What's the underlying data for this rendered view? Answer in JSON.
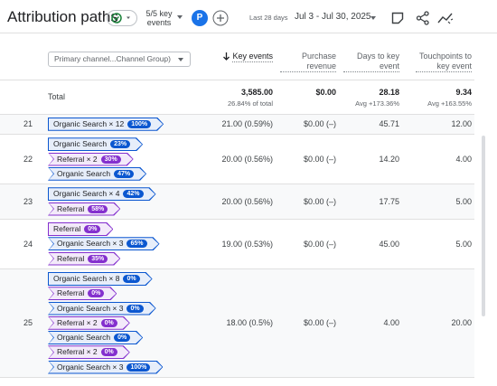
{
  "header": {
    "title": "Attribution paths",
    "key_events": "5/5 key events",
    "avatar": "P",
    "date_label": "Last 28 days",
    "date_range": "Jul 3 - Jul 30, 2025"
  },
  "table": {
    "dimension": "Primary channel...Channel Group)",
    "columns": [
      "Key events",
      "Purchase revenue",
      "Days to key event",
      "Touchpoints to key event"
    ],
    "total": {
      "label": "Total",
      "cells": [
        {
          "value": "3,585.00",
          "sub": "26.84% of total"
        },
        {
          "value": "$0.00"
        },
        {
          "value": "28.18",
          "sub": "Avg +173.36%"
        },
        {
          "value": "9.34",
          "sub": "Avg +163.55%"
        }
      ]
    },
    "rows": [
      {
        "rank": "21",
        "path": [
          {
            "channel": "Organic Search × 12",
            "share": "100%",
            "color": "#0b57d0"
          }
        ],
        "cells": [
          "21.00 (0.59%)",
          "$0.00 (–)",
          "45.71",
          "12.00"
        ]
      },
      {
        "rank": "22",
        "path": [
          {
            "channel": "Organic Search",
            "share": "23%",
            "color": "#0b57d0"
          },
          {
            "channel": "Referral × 2",
            "share": "30%",
            "color": "#8430ce"
          },
          {
            "channel": "Organic Search",
            "share": "47%",
            "color": "#0b57d0"
          }
        ],
        "cells": [
          "20.00 (0.56%)",
          "$0.00 (–)",
          "14.20",
          "4.00"
        ]
      },
      {
        "rank": "23",
        "path": [
          {
            "channel": "Organic Search × 4",
            "share": "42%",
            "color": "#0b57d0"
          },
          {
            "channel": "Referral",
            "share": "58%",
            "color": "#8430ce"
          }
        ],
        "cells": [
          "20.00 (0.56%)",
          "$0.00 (–)",
          "17.75",
          "5.00"
        ]
      },
      {
        "rank": "24",
        "path": [
          {
            "channel": "Referral",
            "share": "0%",
            "color": "#8430ce"
          },
          {
            "channel": "Organic Search × 3",
            "share": "65%",
            "color": "#0b57d0"
          },
          {
            "channel": "Referral",
            "share": "35%",
            "color": "#8430ce"
          }
        ],
        "cells": [
          "19.00 (0.53%)",
          "$0.00 (–)",
          "45.00",
          "5.00"
        ]
      },
      {
        "rank": "25",
        "path": [
          {
            "channel": "Organic Search × 8",
            "share": "0%",
            "color": "#0b57d0"
          },
          {
            "channel": "Referral",
            "share": "0%",
            "color": "#8430ce"
          },
          {
            "channel": "Organic Search × 3",
            "share": "0%",
            "color": "#0b57d0"
          },
          {
            "channel": "Referral × 2",
            "share": "0%",
            "color": "#8430ce"
          },
          {
            "channel": "Organic Search",
            "share": "0%",
            "color": "#0b57d0"
          },
          {
            "channel": "Referral × 2",
            "share": "0%",
            "color": "#8430ce"
          },
          {
            "channel": "Organic Search × 3",
            "share": "100%",
            "color": "#0b57d0"
          }
        ],
        "cells": [
          "18.00 (0.5%)",
          "$0.00 (–)",
          "4.00",
          "20.00"
        ]
      }
    ]
  }
}
